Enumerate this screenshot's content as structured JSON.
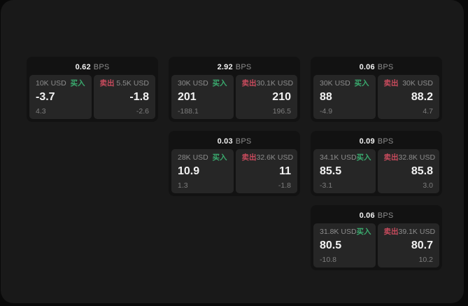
{
  "colors": {
    "backdrop": "#090909",
    "panel": "#191919",
    "card": "#121212",
    "tile": "#262626",
    "text_primary": "#f2f2f2",
    "text_secondary": "#8d8d8d",
    "text_muted": "#7e7e7e",
    "buy_green": "#3aaa6e",
    "sell_red": "#c84b5d"
  },
  "labels": {
    "bps_unit": "BPS",
    "buy": "买入",
    "sell": "卖出"
  },
  "cards": [
    {
      "col": 1,
      "row": 1,
      "bps": "0.62",
      "buy": {
        "size": "10K USD",
        "price": "-3.7",
        "delta": "4.3"
      },
      "sell": {
        "size": "5.5K USD",
        "price": "-1.8",
        "delta": "-2.6"
      }
    },
    {
      "col": 2,
      "row": 1,
      "bps": "2.92",
      "buy": {
        "size": "30K USD",
        "price": "201",
        "delta": "-188.1"
      },
      "sell": {
        "size": "30.1K USD",
        "price": "210",
        "delta": "196.5"
      }
    },
    {
      "col": 3,
      "row": 1,
      "bps": "0.06",
      "buy": {
        "size": "30K USD",
        "price": "88",
        "delta": "-4.9"
      },
      "sell": {
        "size": "30K USD",
        "price": "88.2",
        "delta": "4.7"
      }
    },
    {
      "col": 2,
      "row": 2,
      "bps": "0.03",
      "buy": {
        "size": "28K USD",
        "price": "10.9",
        "delta": "1.3"
      },
      "sell": {
        "size": "32.6K USD",
        "price": "11",
        "delta": "-1.8"
      }
    },
    {
      "col": 3,
      "row": 2,
      "bps": "0.09",
      "buy": {
        "size": "34.1K USD",
        "price": "85.5",
        "delta": "-3.1"
      },
      "sell": {
        "size": "32.8K USD",
        "price": "85.8",
        "delta": "3.0"
      }
    },
    {
      "col": 3,
      "row": 3,
      "bps": "0.06",
      "buy": {
        "size": "31.8K USD",
        "price": "80.5",
        "delta": "-10.8"
      },
      "sell": {
        "size": "39.1K USD",
        "price": "80.7",
        "delta": "10.2"
      }
    }
  ]
}
